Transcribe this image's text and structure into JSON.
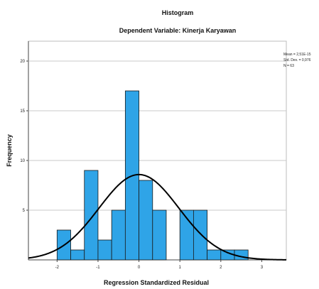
{
  "chart_data": {
    "type": "bar",
    "title": "Histogram",
    "subtitle": "Dependent Variable: Kinerja Karyawan",
    "xlabel": "Regression Standardized Residual",
    "ylabel": "Frequency",
    "x_ticks": [
      "-2",
      "-1",
      "0",
      "1",
      "2",
      "3"
    ],
    "y_ticks": [
      "5",
      "10",
      "15",
      "20"
    ],
    "xlim": [
      -2.7,
      3.6
    ],
    "ylim": [
      0,
      22
    ],
    "grid": true,
    "bin_width": 0.3333,
    "bins": [
      {
        "start": -2.0,
        "count": 3
      },
      {
        "start": -1.6667,
        "count": 1
      },
      {
        "start": -1.3333,
        "count": 9
      },
      {
        "start": -1.0,
        "count": 2
      },
      {
        "start": -0.6667,
        "count": 5
      },
      {
        "start": -0.3333,
        "count": 17
      },
      {
        "start": 0.0,
        "count": 8
      },
      {
        "start": 0.3333,
        "count": 5
      },
      {
        "start": 0.6667,
        "count": 0
      },
      {
        "start": 1.0,
        "count": 5
      },
      {
        "start": 1.3333,
        "count": 5
      },
      {
        "start": 1.6667,
        "count": 1
      },
      {
        "start": 2.0,
        "count": 1
      },
      {
        "start": 2.3333,
        "count": 1
      }
    ],
    "normal_curve": {
      "mean": 0,
      "sd": 0.976,
      "n": 63
    },
    "stats": [
      "Mean = 2,51E-15",
      "Std. Dev. = 0,976",
      "N = 63"
    ],
    "colors": {
      "bar": "#2FA4E7",
      "bar_stroke": "#1a1a1a",
      "curve": "#000000",
      "grid": "#c8c8c8",
      "frame": "#bdbdbd"
    }
  }
}
